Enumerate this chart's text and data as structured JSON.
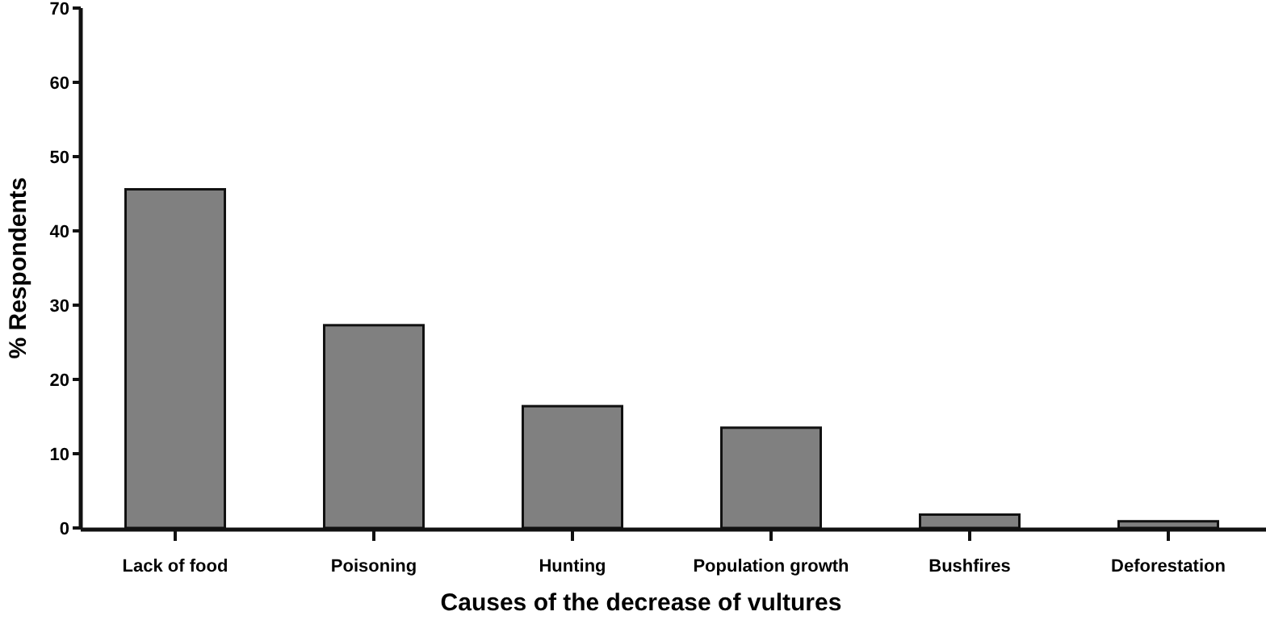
{
  "chart_data": {
    "type": "bar",
    "xlabel": "Causes of the decrease of vultures",
    "ylabel": "% Respondents",
    "categories": [
      "Lack of food",
      "Poisoning",
      "Hunting",
      "Population growth",
      "Bushfires",
      "Deforestation"
    ],
    "values": [
      45.6,
      27.3,
      16.4,
      13.5,
      1.8,
      0.9
    ],
    "color": "#808080",
    "ylim": [
      0,
      70
    ],
    "yticks": [
      0,
      10,
      20,
      30,
      40,
      50,
      60,
      70
    ],
    "grid": false
  }
}
